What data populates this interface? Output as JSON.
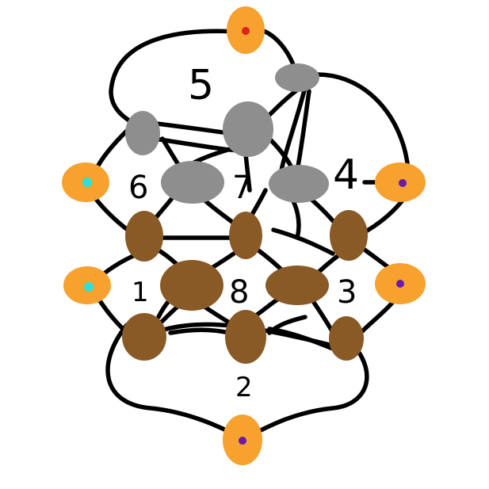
{
  "diagram": {
    "region_labels": [
      "5",
      "4",
      "6",
      "7",
      "1",
      "8",
      "3",
      "2"
    ],
    "colors": {
      "background": "#ffffff",
      "edge": "#000000",
      "terminal": "#f7a12e",
      "terminal_dot_red": "#e0201c",
      "terminal_dot_cyan": "#2ee0d6",
      "terminal_dot_purple": "#6a1aa8",
      "gray_node": "#8e8e8e",
      "brown_node": "#8a5a26"
    }
  }
}
